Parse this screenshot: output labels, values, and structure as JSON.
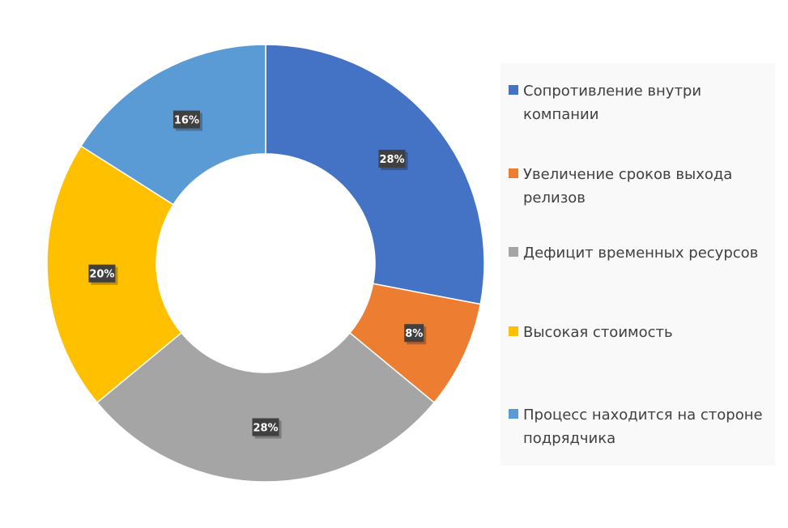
{
  "chart_data": {
    "type": "pie",
    "variant": "donut",
    "categories": [
      "Сопротивление внутри компании",
      "Увеличение сроков выхода релизов",
      "Дефицит временных ресурсов",
      "Высокая стоимость",
      "Процесс находится на стороне подрядчика"
    ],
    "values": [
      28,
      8,
      28,
      20,
      16
    ],
    "data_labels": [
      "28%",
      "8%",
      "28%",
      "20%",
      "16%"
    ],
    "colors": [
      "#4472C4",
      "#ED7D31",
      "#A5A5A5",
      "#FFC000",
      "#5B9BD5"
    ],
    "legend_position": "right",
    "unit": "%"
  }
}
